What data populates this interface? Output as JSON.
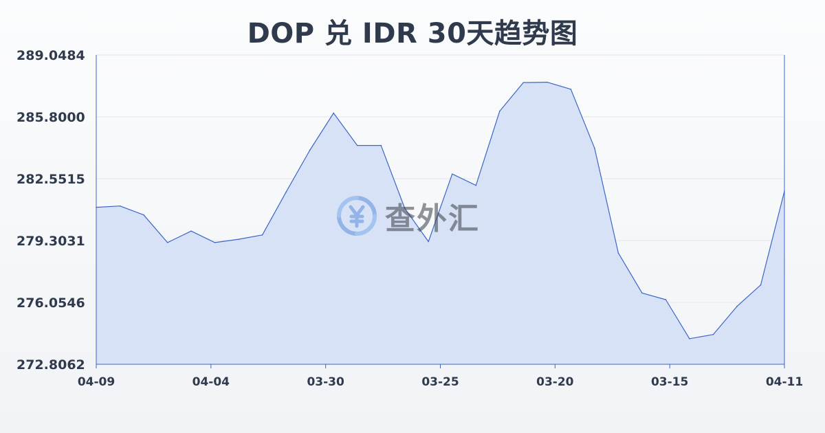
{
  "chart_data": {
    "type": "area",
    "title": "DOP 兑 IDR 30天趋势图",
    "xlabel": "",
    "ylabel": "",
    "ylim": [
      272.8062,
      289.0484
    ],
    "y_ticks": [
      "289.0484",
      "285.8000",
      "282.5515",
      "279.3031",
      "276.0546",
      "272.8062"
    ],
    "x_tick_labels": [
      "04-09",
      "04-04",
      "03-30",
      "03-25",
      "03-20",
      "03-15",
      "04-11"
    ],
    "grid": true,
    "colors": {
      "line": "#3a66c4",
      "fill": "#d6e0f5",
      "grid": "#e3e6eb",
      "axis": "#3a66c4"
    },
    "series": [
      {
        "values": [
          281.05,
          281.12,
          280.65,
          279.2,
          279.8,
          279.2,
          279.37,
          279.6,
          281.85,
          284.05,
          286.0,
          284.3,
          284.3,
          281.0,
          279.25,
          282.8,
          282.2,
          286.1,
          287.6,
          287.62,
          287.25,
          284.15,
          278.65,
          276.55,
          276.2,
          274.15,
          274.37,
          275.85,
          276.97,
          281.9
        ]
      }
    ]
  },
  "watermark": {
    "text": "查外汇",
    "icon": "yen-exchange-icon"
  }
}
